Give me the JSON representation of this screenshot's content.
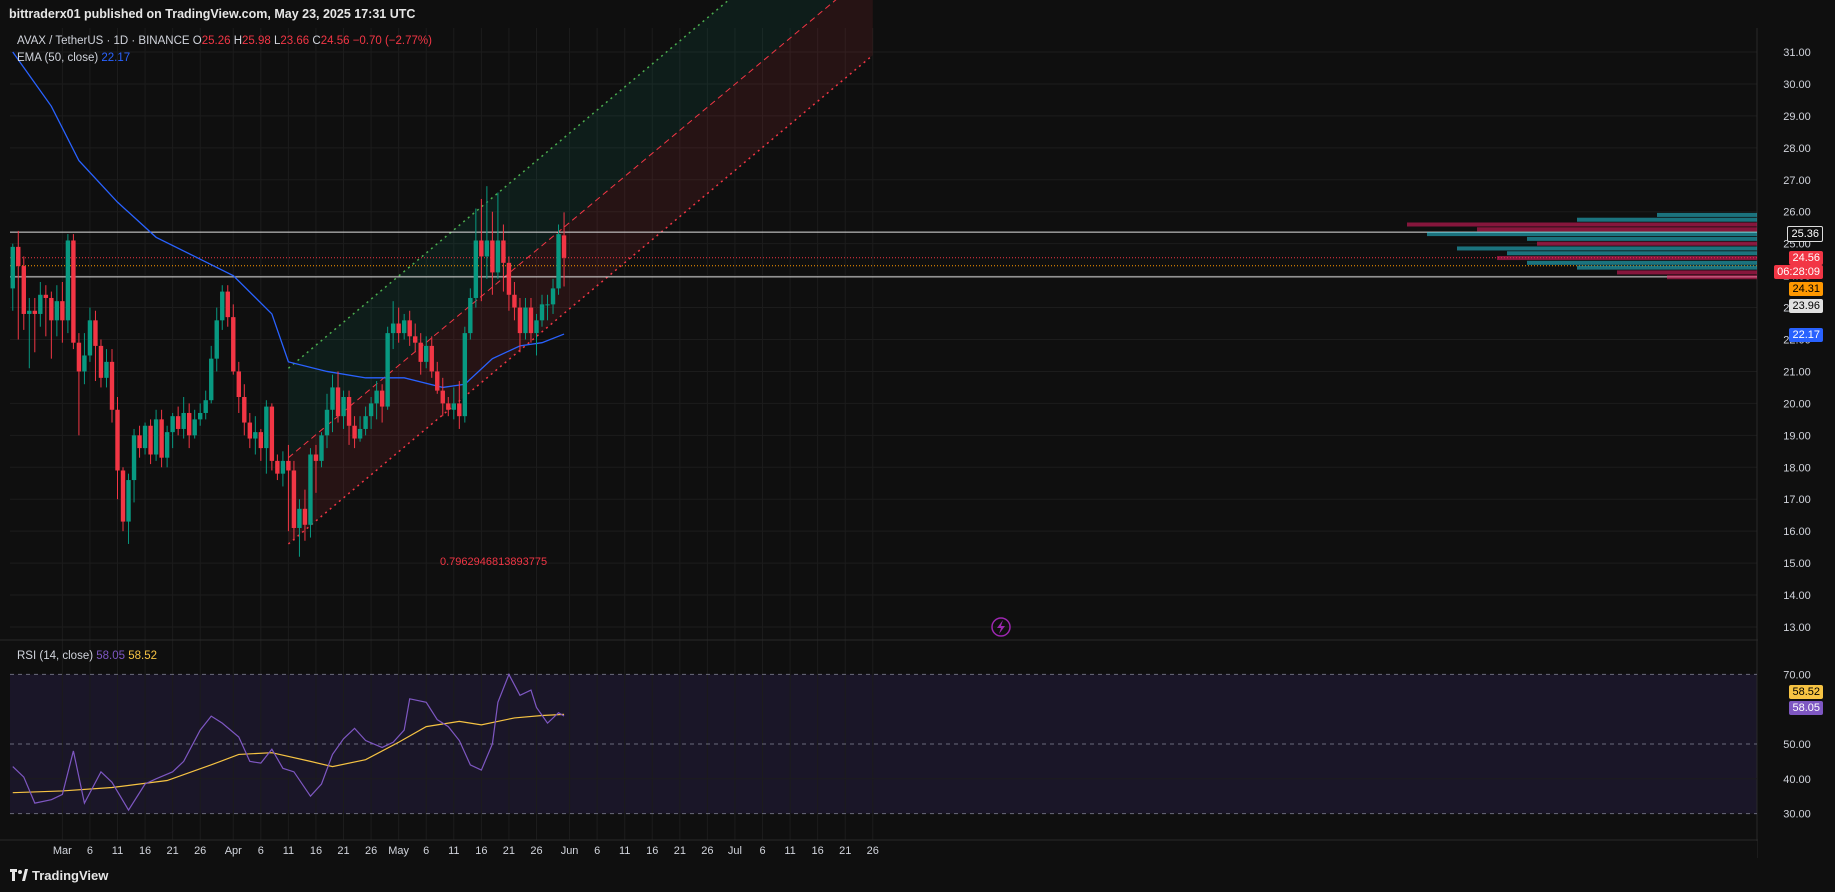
{
  "header": {
    "publish_line": "bittraderx01 published on TradingView.com, May 23, 2025 17:31 UTC"
  },
  "legend": {
    "symbol": "AVAX / TetherUS · 1D · BINANCE",
    "open_label": "O",
    "open": "25.26",
    "high_label": "H",
    "high": "25.98",
    "low_label": "L",
    "low": "23.66",
    "close_label": "C",
    "close": "24.56",
    "change": "−0.70 (−2.77%)",
    "ema_label": "EMA (50, close)",
    "ema_value": "22.17",
    "rsi_label": "RSI (14, close)",
    "rsi_value": "58.05",
    "rsi_ma_value": "58.52"
  },
  "annotations": {
    "fib_label": "0.7962946813893775"
  },
  "price_labels": {
    "resistance": "25.36",
    "current": "24.56",
    "countdown": "06:28:09",
    "support_orange": "24.31",
    "support_gray": "23.96",
    "ema": "22.17",
    "rsi_ma": "58.52",
    "rsi": "58.05"
  },
  "footer": {
    "brand": "TradingView"
  },
  "colors": {
    "up": "#089981",
    "down": "#f23645",
    "ema": "#2962ff",
    "rsi": "#7e57c2",
    "rsi_ma": "#f6c343",
    "bg": "#0f0f0f"
  },
  "chart_data": {
    "type": "candlestick",
    "x_tick_labels": [
      "Mar",
      "6",
      "11",
      "16",
      "21",
      "26",
      "Apr",
      "6",
      "11",
      "16",
      "21",
      "26",
      "May",
      "6",
      "11",
      "16",
      "21",
      "26",
      "Jun",
      "6",
      "11",
      "16",
      "21",
      "26",
      "Jul",
      "6",
      "11",
      "16",
      "21",
      "26"
    ],
    "y_tick_labels": [
      "31.00",
      "30.00",
      "29.00",
      "28.00",
      "27.00",
      "26.00",
      "25.00",
      "24.00",
      "23.00",
      "22.00",
      "21.00",
      "20.00",
      "19.00",
      "18.00",
      "17.00",
      "16.00",
      "15.00",
      "14.00",
      "13.00"
    ],
    "ylim": [
      12.5,
      31.5
    ],
    "x_start": "2025-02-20",
    "candles": [
      [
        "02-20",
        23.6,
        24.9,
        22.9,
        25.0
      ],
      [
        "02-21",
        24.9,
        24.3,
        22.0,
        25.4
      ],
      [
        "02-22",
        24.3,
        22.8,
        22.3,
        24.6
      ],
      [
        "02-23",
        22.8,
        22.9,
        21.1,
        23.3
      ],
      [
        "02-24",
        22.9,
        22.8,
        21.6,
        23.3
      ],
      [
        "02-25",
        22.8,
        23.4,
        22.4,
        23.8
      ],
      [
        "02-26",
        23.4,
        23.3,
        22.1,
        23.7
      ],
      [
        "02-27",
        23.3,
        22.6,
        21.4,
        23.5
      ],
      [
        "02-28",
        22.6,
        23.2,
        22.1,
        23.7
      ],
      [
        "03-01",
        23.2,
        22.6,
        21.9,
        23.8
      ],
      [
        "03-02",
        22.6,
        25.1,
        22.2,
        25.3
      ],
      [
        "03-03",
        25.1,
        21.9,
        21.7,
        25.3
      ],
      [
        "03-04",
        21.9,
        21.0,
        19.0,
        22.2
      ],
      [
        "03-05",
        21.0,
        21.5,
        20.6,
        22.2
      ],
      [
        "03-06",
        21.5,
        22.6,
        21.3,
        23.0
      ],
      [
        "03-07",
        22.6,
        21.8,
        20.7,
        22.9
      ],
      [
        "03-08",
        21.8,
        20.8,
        20.5,
        22.0
      ],
      [
        "03-09",
        20.8,
        21.3,
        20.5,
        21.7
      ],
      [
        "03-10",
        21.3,
        19.8,
        19.4,
        21.7
      ],
      [
        "03-11",
        19.8,
        17.9,
        17.0,
        20.2
      ],
      [
        "03-12",
        17.9,
        16.3,
        16.0,
        18.0
      ],
      [
        "03-13",
        16.3,
        17.6,
        15.6,
        17.8
      ],
      [
        "03-14",
        17.6,
        19.0,
        16.9,
        19.2
      ],
      [
        "03-15",
        19.0,
        18.6,
        18.3,
        19.3
      ],
      [
        "03-16",
        18.6,
        19.3,
        18.4,
        19.4
      ],
      [
        "03-17",
        19.3,
        18.4,
        18.1,
        19.5
      ],
      [
        "03-18",
        18.4,
        19.5,
        18.2,
        19.8
      ],
      [
        "03-19",
        19.5,
        18.3,
        18.0,
        19.8
      ],
      [
        "03-20",
        18.3,
        19.1,
        18.0,
        19.3
      ],
      [
        "03-21",
        19.1,
        19.6,
        18.6,
        19.7
      ],
      [
        "03-22",
        19.6,
        19.2,
        19.0,
        19.9
      ],
      [
        "03-23",
        19.2,
        19.7,
        18.9,
        20.2
      ],
      [
        "03-24",
        19.7,
        19.0,
        18.6,
        20.0
      ],
      [
        "03-25",
        19.0,
        19.5,
        18.9,
        19.8
      ],
      [
        "03-26",
        19.5,
        19.7,
        19.3,
        20.0
      ],
      [
        "03-27",
        19.7,
        20.1,
        19.5,
        20.4
      ],
      [
        "03-28",
        20.1,
        21.4,
        20.0,
        21.8
      ],
      [
        "03-29",
        21.4,
        22.6,
        21.0,
        23.0
      ],
      [
        "03-30",
        22.6,
        23.5,
        22.3,
        23.7
      ],
      [
        "03-31",
        23.5,
        22.7,
        22.4,
        23.7
      ],
      [
        "04-01",
        22.7,
        21.0,
        20.9,
        23.1
      ],
      [
        "04-02",
        21.0,
        20.2,
        19.7,
        21.3
      ],
      [
        "04-03",
        20.2,
        19.4,
        19.0,
        20.6
      ],
      [
        "04-04",
        19.4,
        18.9,
        18.6,
        19.7
      ],
      [
        "04-05",
        18.9,
        19.1,
        18.4,
        19.6
      ],
      [
        "04-06",
        19.1,
        18.6,
        18.2,
        19.2
      ],
      [
        "04-07",
        18.6,
        19.9,
        17.8,
        20.1
      ],
      [
        "04-08",
        19.9,
        18.2,
        17.9,
        20.0
      ],
      [
        "04-09",
        18.2,
        17.8,
        17.6,
        18.4
      ],
      [
        "04-10",
        17.8,
        18.2,
        17.4,
        18.5
      ],
      [
        "04-11",
        18.2,
        17.9,
        16.0,
        18.7
      ],
      [
        "04-12",
        17.9,
        16.1,
        15.7,
        18.2
      ],
      [
        "04-13",
        16.1,
        16.7,
        15.2,
        17.0
      ],
      [
        "04-14",
        16.7,
        16.2,
        15.7,
        17.3
      ],
      [
        "04-15",
        16.2,
        18.4,
        15.8,
        18.6
      ],
      [
        "04-16",
        18.4,
        18.2,
        17.2,
        18.7
      ],
      [
        "04-17",
        18.2,
        19.0,
        18.0,
        19.1
      ],
      [
        "04-18",
        19.0,
        19.8,
        18.6,
        20.3
      ],
      [
        "04-19",
        19.8,
        20.5,
        19.1,
        20.9
      ],
      [
        "04-20",
        20.5,
        19.6,
        19.4,
        21.0
      ],
      [
        "04-21",
        19.6,
        20.2,
        19.2,
        20.4
      ],
      [
        "04-22",
        20.2,
        19.3,
        18.7,
        20.4
      ],
      [
        "04-23",
        19.3,
        18.9,
        18.6,
        19.6
      ],
      [
        "04-24",
        18.9,
        19.2,
        18.8,
        19.6
      ],
      [
        "04-25",
        19.2,
        19.6,
        19.0,
        19.9
      ],
      [
        "04-26",
        19.6,
        20.0,
        19.2,
        20.2
      ],
      [
        "04-27",
        20.0,
        20.4,
        19.5,
        20.7
      ],
      [
        "04-28",
        20.4,
        19.9,
        19.4,
        20.6
      ],
      [
        "04-29",
        19.9,
        22.2,
        19.8,
        22.4
      ],
      [
        "04-30",
        22.2,
        22.5,
        21.7,
        23.2
      ],
      [
        "05-01",
        22.5,
        22.2,
        21.9,
        23.0
      ],
      [
        "05-02",
        22.2,
        22.6,
        22.0,
        22.8
      ],
      [
        "05-03",
        22.6,
        22.1,
        21.8,
        22.9
      ],
      [
        "05-04",
        22.1,
        21.9,
        21.6,
        22.5
      ],
      [
        "05-05",
        21.9,
        21.3,
        20.9,
        22.2
      ],
      [
        "05-06",
        21.3,
        21.8,
        21.1,
        22.1
      ],
      [
        "05-07",
        21.8,
        21.0,
        20.8,
        22.1
      ],
      [
        "05-08",
        21.0,
        20.4,
        20.3,
        21.3
      ],
      [
        "05-09",
        20.4,
        20.0,
        19.6,
        20.8
      ],
      [
        "05-10",
        20.0,
        19.8,
        19.6,
        20.2
      ],
      [
        "05-11",
        19.8,
        20.0,
        19.5,
        20.5
      ],
      [
        "05-12",
        20.0,
        19.6,
        19.2,
        20.7
      ],
      [
        "05-13",
        19.6,
        22.2,
        19.4,
        22.4
      ],
      [
        "05-14",
        22.2,
        23.3,
        22.0,
        23.6
      ],
      [
        "05-15",
        23.3,
        25.1,
        23.0,
        26.1
      ],
      [
        "05-16",
        25.1,
        24.6,
        23.2,
        26.4
      ],
      [
        "05-17",
        24.6,
        25.1,
        23.9,
        26.8
      ],
      [
        "05-18",
        25.1,
        24.1,
        23.4,
        26.0
      ],
      [
        "05-19",
        24.1,
        25.1,
        23.9,
        26.6
      ],
      [
        "05-20",
        25.1,
        24.4,
        23.5,
        25.6
      ],
      [
        "05-21",
        24.4,
        23.4,
        22.9,
        24.6
      ],
      [
        "05-22",
        23.4,
        23.0,
        22.6,
        23.8
      ],
      [
        "05-23",
        23.0,
        22.2,
        21.6,
        23.3
      ],
      [
        "05-24",
        22.2,
        23.0,
        22.0,
        23.3
      ],
      [
        "05-25",
        23.0,
        22.2,
        21.9,
        23.3
      ],
      [
        "05-26",
        22.2,
        22.6,
        21.5,
        22.8
      ],
      [
        "05-27",
        22.6,
        23.1,
        22.4,
        23.4
      ],
      [
        "05-28",
        23.1,
        23.1,
        22.6,
        23.4
      ],
      [
        "05-29",
        23.1,
        23.6,
        22.8,
        23.9
      ],
      [
        "05-30",
        23.6,
        25.3,
        23.4,
        25.6
      ],
      [
        "05-31",
        25.26,
        24.56,
        23.66,
        25.98
      ]
    ],
    "ema_series": [
      [
        "02-20",
        31.0
      ],
      [
        "02-27",
        29.3
      ],
      [
        "03-04",
        27.6
      ],
      [
        "03-11",
        26.3
      ],
      [
        "03-18",
        25.2
      ],
      [
        "03-25",
        24.6
      ],
      [
        "04-01",
        24.0
      ],
      [
        "04-08",
        22.8
      ],
      [
        "04-11",
        21.3
      ],
      [
        "04-18",
        21.0
      ],
      [
        "04-25",
        20.8
      ],
      [
        "05-02",
        20.8
      ],
      [
        "05-09",
        20.5
      ],
      [
        "05-13",
        20.6
      ],
      [
        "05-18",
        21.4
      ],
      [
        "05-23",
        21.8
      ],
      [
        "05-27",
        21.9
      ],
      [
        "05-31",
        22.17
      ]
    ],
    "rsi": {
      "ylim": [
        27,
        73
      ],
      "levels": [
        70,
        50,
        30
      ],
      "tick_labels": [
        "70.00",
        "50.00",
        "40.00",
        "30.00"
      ],
      "rsi_series": [
        [
          "02-20",
          43.5
        ],
        [
          "02-22",
          40.5
        ],
        [
          "02-24",
          33.0
        ],
        [
          "02-27",
          34.0
        ],
        [
          "03-01",
          35.5
        ],
        [
          "03-03",
          48.0
        ],
        [
          "03-05",
          33.0
        ],
        [
          "03-08",
          42.0
        ],
        [
          "03-10",
          39.0
        ],
        [
          "03-13",
          31.0
        ],
        [
          "03-16",
          38.5
        ],
        [
          "03-18",
          40.0
        ],
        [
          "03-21",
          42.0
        ],
        [
          "03-23",
          45.0
        ],
        [
          "03-26",
          54.0
        ],
        [
          "03-28",
          58.0
        ],
        [
          "03-30",
          56.0
        ],
        [
          "04-02",
          52.0
        ],
        [
          "04-04",
          45.0
        ],
        [
          "04-06",
          44.5
        ],
        [
          "04-08",
          48.5
        ],
        [
          "04-10",
          43.0
        ],
        [
          "04-12",
          42.0
        ],
        [
          "04-15",
          35.0
        ],
        [
          "04-17",
          38.5
        ],
        [
          "04-19",
          47.0
        ],
        [
          "04-21",
          51.5
        ],
        [
          "04-23",
          54.5
        ],
        [
          "04-25",
          51.0
        ],
        [
          "04-28",
          49.0
        ],
        [
          "04-30",
          50.5
        ],
        [
          "05-02",
          54.0
        ],
        [
          "05-03",
          63.0
        ],
        [
          "05-06",
          62.0
        ],
        [
          "05-08",
          57.0
        ],
        [
          "05-10",
          55.0
        ],
        [
          "05-12",
          51.0
        ],
        [
          "05-14",
          44.0
        ],
        [
          "05-16",
          42.5
        ],
        [
          "05-18",
          50.0
        ],
        [
          "05-19",
          62.0
        ],
        [
          "05-21",
          70.0
        ],
        [
          "05-23",
          64.0
        ],
        [
          "05-25",
          65.5
        ],
        [
          "05-26",
          60.5
        ],
        [
          "05-28",
          56.0
        ],
        [
          "05-30",
          59.0
        ],
        [
          "05-31",
          58.05
        ]
      ],
      "ma_series": [
        [
          "02-20",
          36.0
        ],
        [
          "03-01",
          36.5
        ],
        [
          "03-10",
          37.5
        ],
        [
          "03-20",
          39.5
        ],
        [
          "03-28",
          44.0
        ],
        [
          "04-02",
          47.0
        ],
        [
          "04-08",
          47.5
        ],
        [
          "04-15",
          45.0
        ],
        [
          "04-19",
          43.5
        ],
        [
          "04-25",
          45.5
        ],
        [
          "05-01",
          50.5
        ],
        [
          "05-06",
          55.0
        ],
        [
          "05-12",
          56.5
        ],
        [
          "05-16",
          55.5
        ],
        [
          "05-22",
          57.5
        ],
        [
          "05-27",
          58.2
        ],
        [
          "05-31",
          58.52
        ]
      ]
    },
    "horizontal_levels": [
      25.36,
      24.31,
      23.96
    ],
    "channel": {
      "start": "04-11",
      "end": "07-26",
      "lower_start": 15.6,
      "lower_end": 30.9,
      "mid_start": 18.3,
      "mid_end": 33.6,
      "upper_start": 21.1,
      "upper_end": 36.4
    }
  }
}
